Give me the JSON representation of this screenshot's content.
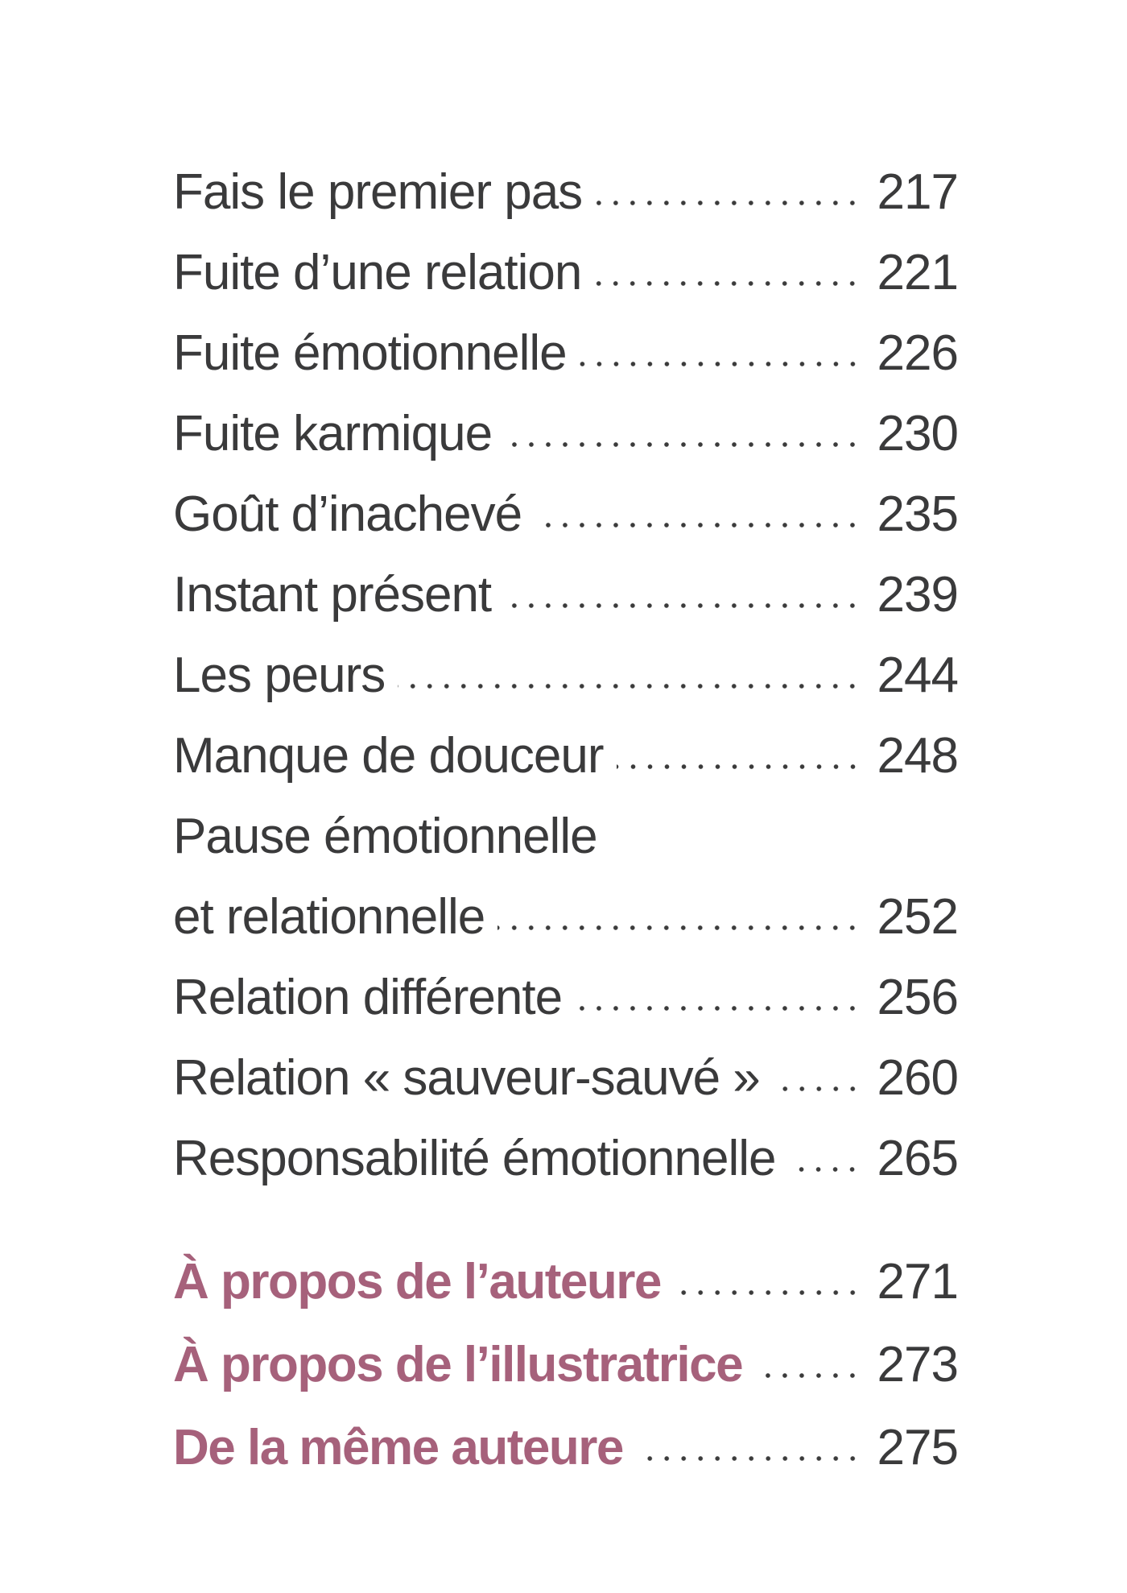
{
  "colors": {
    "background": "#ffffff",
    "text": "#3a3a3b",
    "accent": "#a6617b",
    "leader_dot": "#3b3b3b"
  },
  "toc": {
    "entries": [
      {
        "label": "Fais le premier pas",
        "page": "217"
      },
      {
        "label": "Fuite d’une relation",
        "page": "221"
      },
      {
        "label": "Fuite émotionnelle",
        "page": "226"
      },
      {
        "label": "Fuite karmique",
        "page": "230"
      },
      {
        "label": "Goût d’inachevé",
        "page": "235"
      },
      {
        "label": "Instant présent",
        "page": "239"
      },
      {
        "label": "Les peurs",
        "page": "244"
      },
      {
        "label": "Manque de douceur",
        "page": "248"
      },
      {
        "label": "Pause émotionnelle",
        "page": ""
      },
      {
        "label": "et relationnelle",
        "page": "252"
      },
      {
        "label": "Relation différente",
        "page": "256"
      },
      {
        "label": "Relation « sauveur-sauvé »",
        "page": "260"
      },
      {
        "label": "Responsabilité émotionnelle",
        "page": "265"
      }
    ],
    "accent_entries": [
      {
        "label": "À propos de l’auteure",
        "page": "271"
      },
      {
        "label": "À propos de l’illustratrice",
        "page": "273"
      },
      {
        "label": "De la même auteure",
        "page": "275"
      }
    ]
  }
}
